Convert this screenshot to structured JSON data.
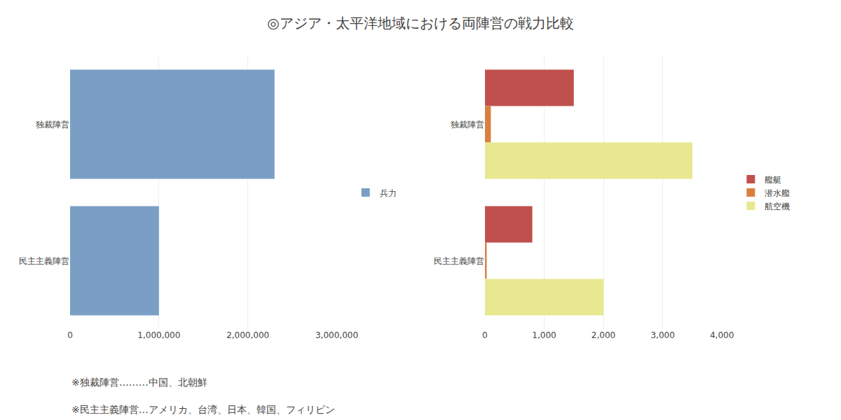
{
  "chart_data": [
    {
      "type": "bar",
      "orientation": "horizontal",
      "title": "◎アジア・太平洋地域における両陣営の戦力比較",
      "annotations": [
        "※独裁陣営………中国、北朝鮮",
        "※民主主義陣営…アメリカ、台湾、日本、韓国、フィリピン"
      ],
      "categories": [
        "独裁陣営",
        "民主主義陣営"
      ],
      "series": [
        {
          "name": "兵力",
          "color": "#7b9fc4",
          "values": [
            2300000,
            1000000
          ]
        }
      ],
      "xlim": [
        0,
        3000000
      ],
      "xticks": [
        0,
        {
          "value": 1000000,
          "label": "1,000,000"
        },
        {
          "value": 2000000,
          "label": "2,000,000"
        },
        {
          "value": 3000000,
          "label": "3,000,000"
        }
      ],
      "grid": true,
      "legend": "right"
    },
    {
      "type": "bar",
      "orientation": "horizontal",
      "categories": [
        "独裁陣営",
        "民主主義陣営"
      ],
      "series": [
        {
          "name": "艦艇",
          "color": "#c0504d",
          "values": [
            1500,
            800
          ]
        },
        {
          "name": "潜水艦",
          "color": "#d98040",
          "values": [
            100,
            30
          ]
        },
        {
          "name": "航空機",
          "color": "#e8e890",
          "values": [
            3500,
            2000
          ]
        }
      ],
      "xlim": [
        0,
        4000
      ],
      "xticks": [
        0,
        {
          "value": 1000,
          "label": "1,000"
        },
        {
          "value": 2000,
          "label": "2,000"
        },
        {
          "value": 3000,
          "label": "3,000"
        },
        {
          "value": 4000,
          "label": "4,000"
        }
      ],
      "grid": true,
      "legend": "right"
    }
  ]
}
